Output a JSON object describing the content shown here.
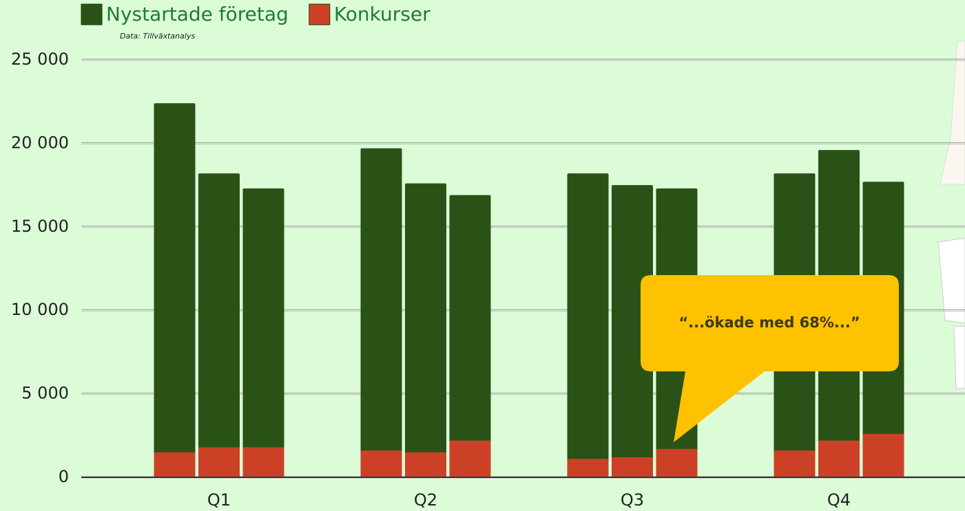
{
  "chart_data": {
    "type": "bar",
    "subtitle": "Data: Tillväxtanalys",
    "annotation": "“...ökade med 68%...”",
    "categories": [
      null,
      "Q1",
      null,
      null,
      "Q2",
      null,
      null,
      "Q3",
      null,
      null,
      "Q4",
      null
    ],
    "series": [
      {
        "name": "Nystartade företag",
        "color": "#2a5216",
        "values": [
          22400,
          18200,
          17300,
          19700,
          17600,
          16900,
          18200,
          17500,
          17300,
          18200,
          19600,
          17700
        ]
      },
      {
        "name": "Konkurser",
        "color": "#cc4125",
        "values": [
          1500,
          1800,
          1800,
          1600,
          1500,
          2200,
          1100,
          1200,
          1700,
          1600,
          2200,
          2600
        ]
      }
    ],
    "ylim": [
      0,
      25000
    ],
    "yticks": [
      0,
      {
        "value": 5000,
        "label": "5 000"
      },
      {
        "value": 10000,
        "label": "10 000"
      },
      {
        "value": 15000,
        "label": "15 000"
      },
      {
        "value": 20000,
        "label": "20 000"
      },
      {
        "value": 25000,
        "label": "25 000"
      }
    ],
    "grid": true
  }
}
